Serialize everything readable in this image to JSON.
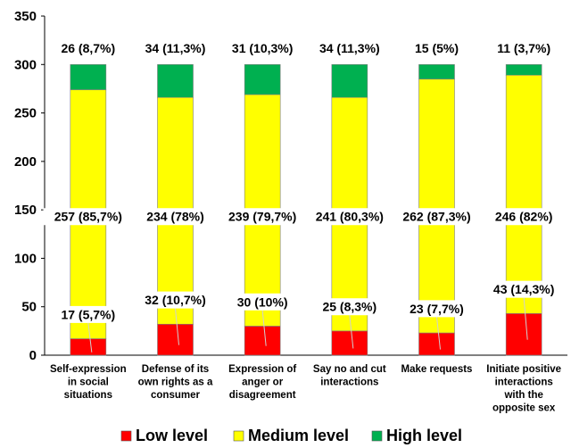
{
  "chart_data": {
    "type": "bar",
    "stacked": true,
    "categories": [
      "Self-expression in social situations",
      "Defense of its own rights as a consumer",
      "Expression of anger or disagreement",
      "Say no and cut interactions",
      "Make requests",
      "Initiate positive interactions with the opposite sex"
    ],
    "category_lines": [
      [
        "Self-expression",
        "in social",
        "situations"
      ],
      [
        "Defense of its",
        "own rights as a",
        "consumer"
      ],
      [
        "Expression of",
        "anger or",
        "disagreement"
      ],
      [
        "Say no and cut",
        "interactions"
      ],
      [
        "Make requests"
      ],
      [
        "Initiate positive",
        "interactions",
        "with the",
        "opposite sex"
      ]
    ],
    "series": [
      {
        "name": "Low level",
        "color": "#ff0000",
        "values": [
          17,
          32,
          30,
          25,
          23,
          43
        ],
        "labels": [
          "17 (5,7%)",
          "32 (10,7%)",
          "30 (10%)",
          "25 (8,3%)",
          "23 (7,7%)",
          "43 (14,3%)"
        ]
      },
      {
        "name": "Medium level",
        "color": "#ffff00",
        "values": [
          257,
          234,
          239,
          241,
          262,
          246
        ],
        "labels": [
          "257 (85,7%)",
          "234 (78%)",
          "239 (79,7%)",
          "241 (80,3%)",
          "262 (87,3%)",
          "246 (82%)"
        ]
      },
      {
        "name": "High level",
        "color": "#00b050",
        "values": [
          26,
          34,
          31,
          34,
          15,
          11
        ],
        "labels": [
          "26 (8,7%)",
          "34 (11,3%)",
          "31 (10,3%)",
          "34 (11,3%)",
          "15 (5%)",
          "11 (3,7%)"
        ]
      }
    ],
    "ylim": [
      0,
      350
    ],
    "yticks": [
      0,
      50,
      100,
      150,
      200,
      250,
      300,
      350
    ],
    "xlabel": "",
    "ylabel": "",
    "grid": false,
    "legend": "bottom"
  }
}
